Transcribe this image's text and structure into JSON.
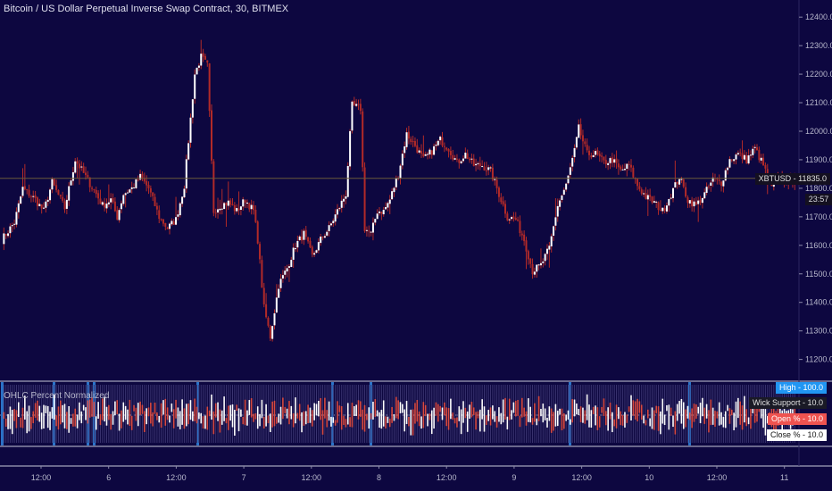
{
  "header": {
    "title": "Bitcoin / US Dollar Perpetual Inverse Swap Contract, 30, BITMEX"
  },
  "price_tag": {
    "symbol": "XBTUSD",
    "price": "11835.0",
    "label": "XBTUSD - 11835.0",
    "countdown": "23:57"
  },
  "indicator": {
    "title": "OHLC Percent Normalized",
    "badges": [
      {
        "label": "High - 100.0",
        "bg": "#2196f3",
        "fg": "#ffffff"
      },
      {
        "label": "Wick Support - 10.0",
        "bg": "#1a1a26",
        "fg": "#e0e0e0"
      },
      {
        "label": "Open % - 10.0",
        "bg": "#ef5350",
        "fg": "#ffffff"
      },
      {
        "label": "Close % - 10.0",
        "bg": "#ffffff",
        "fg": "#111111"
      }
    ]
  },
  "colors": {
    "background": "#0d0740",
    "up_candle": "#ffffff",
    "down_candle": "#b22a28",
    "wick": "#b22a28",
    "session_line": "#2a72c8",
    "price_line": "#6a5a3a"
  },
  "chart_data": {
    "type": "candlestick",
    "symbol": "XBTUSD",
    "interval": "30",
    "exchange": "BITMEX",
    "y_ticks": [
      "11200.0",
      "11300.0",
      "11400.0",
      "11500.0",
      "11600.0",
      "11700.0",
      "11800.0",
      "11900.0",
      "12000.0",
      "12100.0",
      "12200.0",
      "12300.0",
      "12400.0"
    ],
    "ylim": [
      11130,
      12460
    ],
    "x_ticks": [
      "12:00",
      "6",
      "12:00",
      "7",
      "12:00",
      "8",
      "12:00",
      "9",
      "12:00",
      "10",
      "12:00",
      "11"
    ],
    "last_price": 11835.0,
    "close_path": [
      [
        0,
        11620
      ],
      [
        6,
        11680
      ],
      [
        10,
        11800
      ],
      [
        16,
        11760
      ],
      [
        20,
        11720
      ],
      [
        24,
        11820
      ],
      [
        30,
        11730
      ],
      [
        35,
        11900
      ],
      [
        40,
        11840
      ],
      [
        45,
        11780
      ],
      [
        48,
        11740
      ],
      [
        52,
        11760
      ],
      [
        55,
        11700
      ],
      [
        58,
        11780
      ],
      [
        62,
        11800
      ],
      [
        66,
        11840
      ],
      [
        70,
        11800
      ],
      [
        75,
        11700
      ],
      [
        79,
        11660
      ],
      [
        83,
        11690
      ],
      [
        87,
        11810
      ],
      [
        92,
        12200
      ],
      [
        95,
        12260
      ],
      [
        98,
        12230
      ],
      [
        101,
        11720
      ],
      [
        104,
        11740
      ],
      [
        108,
        11750
      ],
      [
        112,
        11720
      ],
      [
        116,
        11760
      ],
      [
        120,
        11720
      ],
      [
        122,
        11620
      ],
      [
        125,
        11380
      ],
      [
        128,
        11280
      ],
      [
        132,
        11460
      ],
      [
        136,
        11520
      ],
      [
        140,
        11600
      ],
      [
        144,
        11640
      ],
      [
        148,
        11560
      ],
      [
        152,
        11620
      ],
      [
        156,
        11660
      ],
      [
        160,
        11720
      ],
      [
        164,
        11780
      ],
      [
        167,
        12090
      ],
      [
        171,
        12080
      ],
      [
        173,
        11660
      ],
      [
        176,
        11640
      ],
      [
        179,
        11720
      ],
      [
        182,
        11720
      ],
      [
        185,
        11760
      ],
      [
        189,
        11850
      ],
      [
        193,
        11990
      ],
      [
        197,
        11950
      ],
      [
        201,
        11900
      ],
      [
        205,
        11930
      ],
      [
        209,
        11970
      ],
      [
        213,
        11940
      ],
      [
        217,
        11890
      ],
      [
        221,
        11920
      ],
      [
        225,
        11880
      ],
      [
        229,
        11880
      ],
      [
        233,
        11860
      ],
      [
        237,
        11780
      ],
      [
        241,
        11700
      ],
      [
        245,
        11690
      ],
      [
        249,
        11620
      ],
      [
        253,
        11510
      ],
      [
        257,
        11530
      ],
      [
        261,
        11590
      ],
      [
        265,
        11740
      ],
      [
        269,
        11810
      ],
      [
        273,
        11930
      ],
      [
        275,
        12010
      ],
      [
        279,
        11920
      ],
      [
        283,
        11920
      ],
      [
        287,
        11890
      ],
      [
        291,
        11900
      ],
      [
        295,
        11860
      ],
      [
        299,
        11880
      ],
      [
        303,
        11810
      ],
      [
        307,
        11770
      ],
      [
        311,
        11750
      ],
      [
        315,
        11720
      ],
      [
        319,
        11780
      ],
      [
        323,
        11840
      ],
      [
        327,
        11760
      ],
      [
        331,
        11740
      ],
      [
        335,
        11780
      ],
      [
        339,
        11830
      ],
      [
        343,
        11820
      ],
      [
        347,
        11900
      ],
      [
        351,
        11920
      ],
      [
        355,
        11900
      ],
      [
        359,
        11940
      ],
      [
        363,
        11880
      ],
      [
        367,
        11800
      ],
      [
        371,
        11840
      ],
      [
        375,
        11820
      ],
      [
        378,
        11835
      ]
    ]
  }
}
